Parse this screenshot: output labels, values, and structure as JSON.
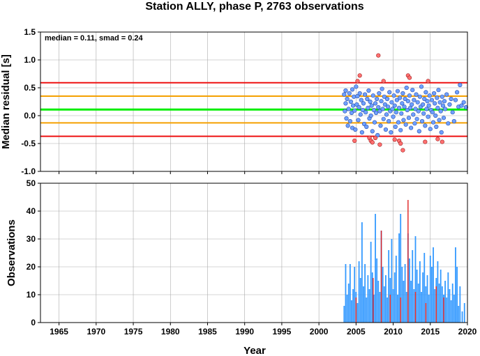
{
  "title": "Station ALLY, phase P, 2763 observations",
  "annotation": "median = 0.11, smad = 0.24",
  "colors": {
    "median_line": "#00ee00",
    "one_smad_line": "#f5a000",
    "outer_line": "#ee1111",
    "point_fill": "#6fa0ff",
    "point_outlier_fill": "#ff7070",
    "bar": "#3399ff",
    "bar_highlight": "#e02020",
    "grid": "#aaaaaa"
  },
  "chart_data": [
    {
      "type": "scatter",
      "ylabel": "Median residual [s]",
      "xlim": [
        1962.5,
        2020
      ],
      "ylim": [
        -1.0,
        1.5
      ],
      "yticks": [
        "-1.0",
        "-0.5",
        "0.0",
        "0.5",
        "1.0",
        "1.5"
      ],
      "hlines": [
        {
          "name": "median",
          "value": 0.11
        },
        {
          "name": "median+1smad",
          "value": 0.35
        },
        {
          "name": "median-1smad",
          "value": -0.13
        },
        {
          "name": "median+2smad",
          "value": 0.59
        },
        {
          "name": "median-2smad",
          "value": -0.37
        }
      ],
      "points": [
        [
          2003.4,
          0.38
        ],
        [
          2003.5,
          0.08
        ],
        [
          2003.6,
          0.45
        ],
        [
          2003.6,
          0.22
        ],
        [
          2003.7,
          -0.05
        ],
        [
          2003.8,
          0.3
        ],
        [
          2003.9,
          -0.18
        ],
        [
          2004.0,
          0.12
        ],
        [
          2004.1,
          0.4
        ],
        [
          2004.2,
          -0.1
        ],
        [
          2004.3,
          0.25
        ],
        [
          2004.4,
          0.05
        ],
        [
          2004.5,
          0.47
        ],
        [
          2004.5,
          -0.22
        ],
        [
          2004.6,
          0.18
        ],
        [
          2004.7,
          0.34
        ],
        [
          2004.8,
          0.09
        ],
        [
          2004.9,
          -0.25
        ],
        [
          2005.0,
          0.52
        ],
        [
          2005.1,
          0.2
        ],
        [
          2005.2,
          0.35
        ],
        [
          2005.3,
          -0.08
        ],
        [
          2005.4,
          0.15
        ],
        [
          2005.5,
          0.4
        ],
        [
          2005.6,
          0.02
        ],
        [
          2005.7,
          0.28
        ],
        [
          2005.8,
          -0.3
        ],
        [
          2005.9,
          0.1
        ],
        [
          2006.0,
          0.22
        ],
        [
          2006.1,
          -0.15
        ],
        [
          2006.2,
          0.38
        ],
        [
          2006.3,
          0.06
        ],
        [
          2006.4,
          -0.2
        ],
        [
          2006.5,
          0.3
        ],
        [
          2006.6,
          0.14
        ],
        [
          2006.7,
          0.45
        ],
        [
          2006.8,
          -0.05
        ],
        [
          2006.9,
          0.25
        ],
        [
          2007.0,
          0.0
        ],
        [
          2007.1,
          0.18
        ],
        [
          2007.2,
          -0.28
        ],
        [
          2007.3,
          0.36
        ],
        [
          2007.4,
          0.1
        ],
        [
          2007.5,
          -0.12
        ],
        [
          2007.6,
          0.22
        ],
        [
          2007.7,
          0.05
        ],
        [
          2007.8,
          0.3
        ],
        [
          2007.9,
          -0.35
        ],
        [
          2008.0,
          0.15
        ],
        [
          2008.1,
          0.4
        ],
        [
          2008.2,
          0.08
        ],
        [
          2008.3,
          -0.18
        ],
        [
          2008.4,
          0.26
        ],
        [
          2008.5,
          0.48
        ],
        [
          2008.6,
          0.12
        ],
        [
          2008.7,
          -0.06
        ],
        [
          2008.8,
          0.34
        ],
        [
          2008.9,
          0.2
        ],
        [
          2009.0,
          -0.25
        ],
        [
          2009.1,
          0.02
        ],
        [
          2009.2,
          0.3
        ],
        [
          2009.3,
          0.16
        ],
        [
          2009.4,
          -0.1
        ],
        [
          2009.5,
          0.42
        ],
        [
          2009.6,
          0.08
        ],
        [
          2009.7,
          -0.3
        ],
        [
          2009.8,
          0.24
        ],
        [
          2009.9,
          0.12
        ],
        [
          2010.0,
          -0.02
        ],
        [
          2010.1,
          0.36
        ],
        [
          2010.2,
          0.18
        ],
        [
          2010.3,
          -0.2
        ],
        [
          2010.4,
          0.06
        ],
        [
          2010.5,
          0.28
        ],
        [
          2010.6,
          0.44
        ],
        [
          2010.7,
          -0.12
        ],
        [
          2010.8,
          0.14
        ],
        [
          2010.9,
          0.32
        ],
        [
          2011.0,
          -0.26
        ],
        [
          2011.1,
          0.04
        ],
        [
          2011.2,
          0.22
        ],
        [
          2011.3,
          0.4
        ],
        [
          2011.4,
          -0.08
        ],
        [
          2011.5,
          0.16
        ],
        [
          2011.6,
          0.3
        ],
        [
          2011.7,
          -0.16
        ],
        [
          2011.8,
          0.5
        ],
        [
          2011.9,
          0.1
        ],
        [
          2012.0,
          0.26
        ],
        [
          2012.1,
          -0.04
        ],
        [
          2012.2,
          0.36
        ],
        [
          2012.3,
          0.14
        ],
        [
          2012.4,
          -0.22
        ],
        [
          2012.5,
          0.2
        ],
        [
          2012.6,
          0.46
        ],
        [
          2012.7,
          0.02
        ],
        [
          2012.8,
          0.28
        ],
        [
          2012.9,
          -0.14
        ],
        [
          2013.0,
          0.12
        ],
        [
          2013.1,
          0.38
        ],
        [
          2013.2,
          -0.06
        ],
        [
          2013.3,
          0.24
        ],
        [
          2013.4,
          0.08
        ],
        [
          2013.5,
          -0.28
        ],
        [
          2013.6,
          0.34
        ],
        [
          2013.7,
          0.16
        ],
        [
          2013.8,
          0.52
        ],
        [
          2013.9,
          -0.1
        ],
        [
          2014.0,
          0.2
        ],
        [
          2014.1,
          0.04
        ],
        [
          2014.2,
          0.3
        ],
        [
          2014.3,
          -0.18
        ],
        [
          2014.4,
          0.42
        ],
        [
          2014.5,
          0.12
        ],
        [
          2014.6,
          0.26
        ],
        [
          2014.7,
          -0.02
        ],
        [
          2014.8,
          0.18
        ],
        [
          2014.9,
          0.36
        ],
        [
          2015.0,
          -0.24
        ],
        [
          2015.1,
          0.1
        ],
        [
          2015.2,
          0.28
        ],
        [
          2015.3,
          0.06
        ],
        [
          2015.4,
          -0.12
        ],
        [
          2015.5,
          0.4
        ],
        [
          2015.6,
          0.22
        ],
        [
          2015.7,
          0.0
        ],
        [
          2015.8,
          -0.2
        ],
        [
          2015.9,
          0.32
        ],
        [
          2016.0,
          0.14
        ],
        [
          2016.1,
          0.46
        ],
        [
          2016.2,
          -0.08
        ],
        [
          2016.3,
          0.24
        ],
        [
          2016.4,
          0.08
        ],
        [
          2016.5,
          -0.3
        ],
        [
          2016.6,
          0.34
        ],
        [
          2016.7,
          0.18
        ],
        [
          2016.8,
          -0.04
        ],
        [
          2016.9,
          0.26
        ],
        [
          2017.0,
          0.12
        ],
        [
          2017.2,
          0.38
        ],
        [
          2017.4,
          -0.14
        ],
        [
          2017.6,
          0.2
        ],
        [
          2017.8,
          0.3
        ],
        [
          2018.0,
          0.06
        ],
        [
          2018.2,
          -0.1
        ],
        [
          2018.4,
          0.28
        ],
        [
          2018.6,
          0.42
        ],
        [
          2018.8,
          0.16
        ],
        [
          2019.0,
          0.55
        ],
        [
          2019.2,
          0.18
        ],
        [
          2019.5,
          0.24
        ],
        [
          2019.8,
          0.15
        ]
      ],
      "outliers": [
        [
          2004.8,
          -0.45
        ],
        [
          2005.2,
          0.62
        ],
        [
          2005.5,
          0.72
        ],
        [
          2006.8,
          -0.4
        ],
        [
          2007.0,
          -0.45
        ],
        [
          2007.2,
          -0.48
        ],
        [
          2007.6,
          -0.4
        ],
        [
          2008.0,
          1.08
        ],
        [
          2008.2,
          -0.52
        ],
        [
          2008.7,
          0.62
        ],
        [
          2010.2,
          -0.43
        ],
        [
          2010.8,
          -0.45
        ],
        [
          2011.0,
          -0.5
        ],
        [
          2011.3,
          -0.62
        ],
        [
          2012.0,
          0.72
        ],
        [
          2012.2,
          0.68
        ],
        [
          2014.3,
          -0.47
        ],
        [
          2014.7,
          0.62
        ],
        [
          2016.0,
          -0.42
        ],
        [
          2016.6,
          -0.47
        ]
      ]
    },
    {
      "type": "bar",
      "xlabel": "Year",
      "ylabel": "Observations",
      "xlim": [
        1962.5,
        2020
      ],
      "ylim": [
        0,
        50
      ],
      "xticks": [
        "1965",
        "1970",
        "1975",
        "1980",
        "1985",
        "1990",
        "1995",
        "2000",
        "2005",
        "2010",
        "2015",
        "2020"
      ],
      "yticks": [
        "0",
        "10",
        "20",
        "30",
        "40",
        "50"
      ],
      "bars": [
        [
          2003.4,
          6
        ],
        [
          2003.6,
          21
        ],
        [
          2003.8,
          10
        ],
        [
          2004.0,
          14
        ],
        [
          2004.2,
          21
        ],
        [
          2004.4,
          8
        ],
        [
          2004.6,
          12
        ],
        [
          2004.8,
          20
        ],
        [
          2005.0,
          11
        ],
        [
          2005.2,
          7
        ],
        [
          2005.4,
          22
        ],
        [
          2005.6,
          16
        ],
        [
          2005.8,
          36
        ],
        [
          2006.0,
          13
        ],
        [
          2006.2,
          21
        ],
        [
          2006.4,
          9
        ],
        [
          2006.6,
          17
        ],
        [
          2006.8,
          12
        ],
        [
          2007.0,
          29
        ],
        [
          2007.2,
          18
        ],
        [
          2007.4,
          10
        ],
        [
          2007.6,
          39
        ],
        [
          2007.8,
          23
        ],
        [
          2008.0,
          15
        ],
        [
          2008.2,
          11
        ],
        [
          2008.4,
          33
        ],
        [
          2008.6,
          20
        ],
        [
          2008.8,
          13
        ],
        [
          2009.0,
          17
        ],
        [
          2009.2,
          9
        ],
        [
          2009.4,
          26
        ],
        [
          2009.6,
          16
        ],
        [
          2009.8,
          30
        ],
        [
          2010.0,
          12
        ],
        [
          2010.2,
          18
        ],
        [
          2010.4,
          24
        ],
        [
          2010.6,
          10
        ],
        [
          2010.8,
          32
        ],
        [
          2011.0,
          39
        ],
        [
          2011.2,
          20
        ],
        [
          2011.4,
          15
        ],
        [
          2011.6,
          21
        ],
        [
          2011.8,
          11
        ],
        [
          2012.0,
          32
        ],
        [
          2012.2,
          23
        ],
        [
          2012.4,
          15
        ],
        [
          2012.6,
          26
        ],
        [
          2012.8,
          12
        ],
        [
          2013.0,
          31
        ],
        [
          2013.2,
          19
        ],
        [
          2013.4,
          14
        ],
        [
          2013.6,
          22
        ],
        [
          2013.8,
          11
        ],
        [
          2014.0,
          18
        ],
        [
          2014.2,
          25
        ],
        [
          2014.4,
          13
        ],
        [
          2014.6,
          17
        ],
        [
          2014.8,
          10
        ],
        [
          2015.0,
          24
        ],
        [
          2015.2,
          20
        ],
        [
          2015.4,
          27
        ],
        [
          2015.6,
          12
        ],
        [
          2015.8,
          16
        ],
        [
          2016.0,
          22
        ],
        [
          2016.2,
          14
        ],
        [
          2016.4,
          19
        ],
        [
          2016.6,
          13
        ],
        [
          2016.8,
          10
        ],
        [
          2017.0,
          15
        ],
        [
          2017.2,
          9
        ],
        [
          2017.4,
          18
        ],
        [
          2017.6,
          12
        ],
        [
          2017.8,
          8
        ],
        [
          2018.0,
          14
        ],
        [
          2018.2,
          10
        ],
        [
          2018.4,
          27
        ],
        [
          2018.6,
          20
        ],
        [
          2018.8,
          6
        ],
        [
          2019.0,
          13
        ],
        [
          2019.3,
          4
        ],
        [
          2019.6,
          7
        ]
      ],
      "highlight_bars": [
        [
          2005.0,
          9
        ],
        [
          2007.3,
          16
        ],
        [
          2008.4,
          33
        ],
        [
          2009.6,
          10
        ],
        [
          2011.0,
          9
        ],
        [
          2012.0,
          44
        ],
        [
          2013.0,
          11
        ],
        [
          2014.4,
          7
        ],
        [
          2015.8,
          13
        ],
        [
          2016.8,
          9
        ]
      ]
    }
  ]
}
